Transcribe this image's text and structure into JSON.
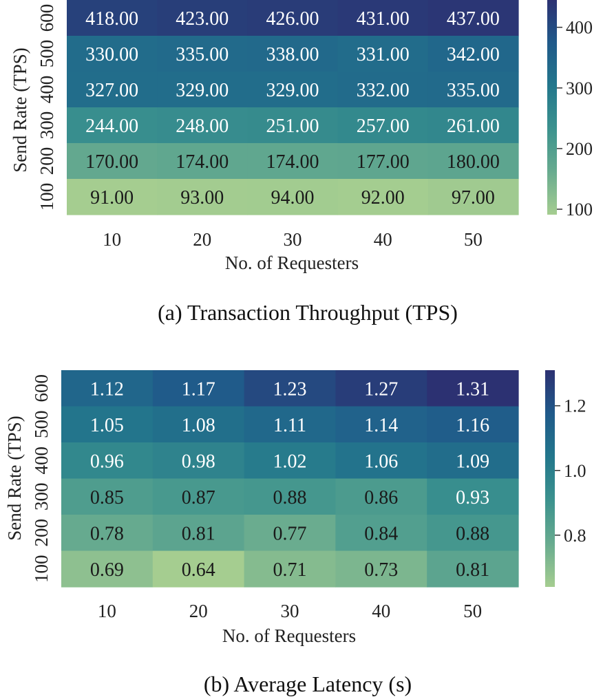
{
  "chart_data": [
    {
      "type": "heatmap",
      "title": "(a) Transaction Throughput (TPS)",
      "xlabel": "No. of Requesters",
      "ylabel": "Send Rate (TPS)",
      "x_categories": [
        "10",
        "20",
        "30",
        "40",
        "50"
      ],
      "y_categories": [
        "600",
        "500",
        "400",
        "300",
        "200",
        "100"
      ],
      "values": [
        [
          418.0,
          423.0,
          426.0,
          431.0,
          437.0
        ],
        [
          330.0,
          335.0,
          338.0,
          331.0,
          342.0
        ],
        [
          327.0,
          329.0,
          329.0,
          332.0,
          335.0
        ],
        [
          244.0,
          248.0,
          251.0,
          257.0,
          261.0
        ],
        [
          170.0,
          174.0,
          174.0,
          177.0,
          180.0
        ],
        [
          91.0,
          93.0,
          94.0,
          92.0,
          97.0
        ]
      ],
      "value_labels": [
        [
          "418.00",
          "423.00",
          "426.00",
          "431.00",
          "437.00"
        ],
        [
          "330.00",
          "335.00",
          "338.00",
          "331.00",
          "342.00"
        ],
        [
          "327.00",
          "329.00",
          "329.00",
          "332.00",
          "335.00"
        ],
        [
          "244.00",
          "248.00",
          "251.00",
          "257.00",
          "261.00"
        ],
        [
          "170.00",
          "174.00",
          "174.00",
          "177.00",
          "180.00"
        ],
        [
          "91.00",
          "93.00",
          "94.00",
          "92.00",
          "97.00"
        ]
      ],
      "colorbar": {
        "range": [
          91,
          445
        ],
        "ticks": [
          100,
          200,
          300,
          400
        ],
        "tick_labels": [
          "100",
          "200",
          "300",
          "400"
        ]
      },
      "colormap": "crest"
    },
    {
      "type": "heatmap",
      "title": "(b) Average Latency (s)",
      "xlabel": "No. of Requesters",
      "ylabel": "Send Rate (TPS)",
      "x_categories": [
        "10",
        "20",
        "30",
        "40",
        "50"
      ],
      "y_categories": [
        "600",
        "500",
        "400",
        "300",
        "200",
        "100"
      ],
      "values": [
        [
          1.12,
          1.17,
          1.23,
          1.27,
          1.31
        ],
        [
          1.05,
          1.08,
          1.11,
          1.14,
          1.16
        ],
        [
          0.96,
          0.98,
          1.02,
          1.06,
          1.09
        ],
        [
          0.85,
          0.87,
          0.88,
          0.86,
          0.93
        ],
        [
          0.78,
          0.81,
          0.77,
          0.84,
          0.88
        ],
        [
          0.69,
          0.64,
          0.71,
          0.73,
          0.81
        ]
      ],
      "value_labels": [
        [
          "1.12",
          "1.17",
          "1.23",
          "1.27",
          "1.31"
        ],
        [
          "1.05",
          "1.08",
          "1.11",
          "1.14",
          "1.16"
        ],
        [
          "0.96",
          "0.98",
          "1.02",
          "1.06",
          "1.09"
        ],
        [
          "0.85",
          "0.87",
          "0.88",
          "0.86",
          "0.93"
        ],
        [
          "0.78",
          "0.81",
          "0.77",
          "0.84",
          "0.88"
        ],
        [
          "0.69",
          "0.64",
          "0.71",
          "0.73",
          "0.81"
        ]
      ],
      "colorbar": {
        "range": [
          0.64,
          1.31
        ],
        "ticks": [
          0.8,
          1.0,
          1.2
        ],
        "tick_labels": [
          "0.8",
          "1.0",
          "1.2"
        ]
      },
      "colormap": "crest"
    }
  ]
}
